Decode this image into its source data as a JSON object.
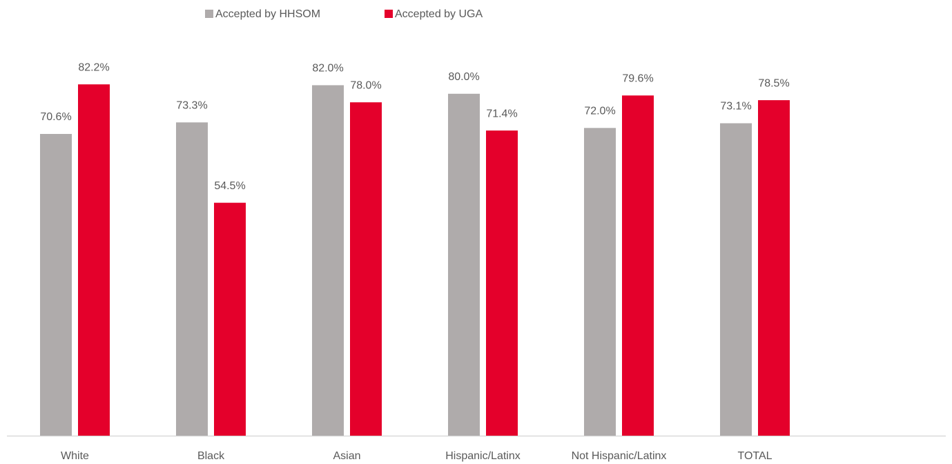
{
  "chart_data": {
    "type": "bar",
    "categories": [
      "White",
      "Black",
      "Asian",
      "Hispanic/Latinx",
      "Not Hispanic/Latinx",
      "TOTAL"
    ],
    "series": [
      {
        "name": "Accepted by HHSOM",
        "color": "#afabab",
        "values": [
          70.6,
          73.3,
          82.0,
          80.0,
          72.0,
          73.1
        ],
        "value_labels": [
          "70.6%",
          "73.3%",
          "82.0%",
          "80.0%",
          "72.0%",
          "73.1%"
        ]
      },
      {
        "name": "Accepted by UGA",
        "color": "#e4002b",
        "values": [
          82.2,
          54.5,
          78.0,
          71.4,
          79.6,
          78.5
        ],
        "value_labels": [
          "82.2%",
          "54.5%",
          "78.0%",
          "71.4%",
          "79.6%",
          "78.5%"
        ]
      }
    ],
    "ylim": [
      0,
      100
    ],
    "legend": "top"
  }
}
